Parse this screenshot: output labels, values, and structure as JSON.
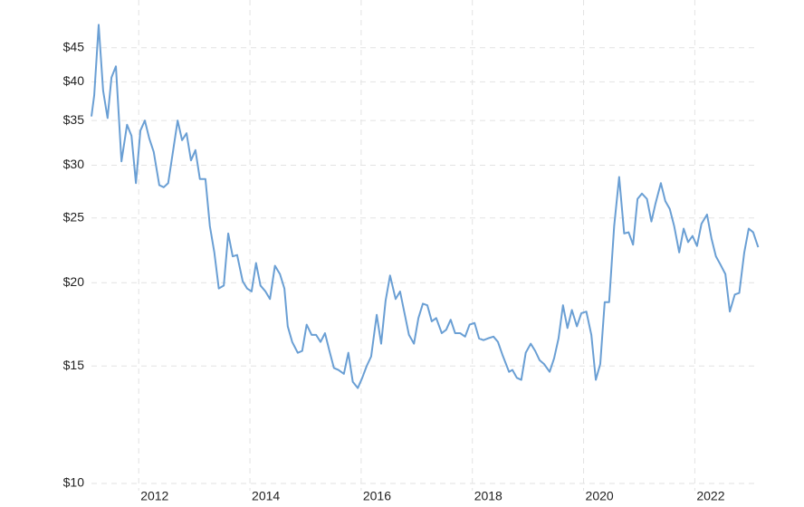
{
  "chart_data": {
    "type": "line",
    "log_scale_y": true,
    "grid": true,
    "xlim": [
      2011.15,
      2023.15
    ],
    "xticks": [
      2012,
      2014,
      2016,
      2018,
      2020,
      2022
    ],
    "ylim": [
      10,
      50
    ],
    "yticks": [
      {
        "value": 10,
        "label": "$10"
      },
      {
        "value": 15,
        "label": "$15"
      },
      {
        "value": 20,
        "label": "$20"
      },
      {
        "value": 25,
        "label": "$25"
      },
      {
        "value": 30,
        "label": "$30"
      },
      {
        "value": 35,
        "label": "$35"
      },
      {
        "value": 40,
        "label": "$40"
      },
      {
        "value": 45,
        "label": "$45"
      }
    ],
    "x": [
      2011.15,
      2011.2,
      2011.28,
      2011.36,
      2011.44,
      2011.51,
      2011.59,
      2011.69,
      2011.79,
      2011.87,
      2011.95,
      2012.03,
      2012.11,
      2012.19,
      2012.27,
      2012.37,
      2012.45,
      2012.53,
      2012.62,
      2012.7,
      2012.78,
      2012.86,
      2012.94,
      2013.02,
      2013.1,
      2013.2,
      2013.28,
      2013.36,
      2013.44,
      2013.53,
      2013.61,
      2013.69,
      2013.77,
      2013.87,
      2013.95,
      2014.03,
      2014.11,
      2014.19,
      2014.28,
      2014.36,
      2014.45,
      2014.54,
      2014.62,
      2014.68,
      2014.76,
      2014.86,
      2014.94,
      2015.02,
      2015.11,
      2015.19,
      2015.27,
      2015.35,
      2015.43,
      2015.51,
      2015.59,
      2015.69,
      2015.77,
      2015.85,
      2015.94,
      2016.02,
      2016.1,
      2016.18,
      2016.28,
      2016.36,
      2016.44,
      2016.52,
      2016.62,
      2016.7,
      2016.78,
      2016.86,
      2016.95,
      2017.03,
      2017.11,
      2017.19,
      2017.27,
      2017.35,
      2017.45,
      2017.53,
      2017.61,
      2017.69,
      2017.78,
      2017.87,
      2017.95,
      2018.04,
      2018.12,
      2018.2,
      2018.28,
      2018.38,
      2018.46,
      2018.54,
      2018.66,
      2018.72,
      2018.8,
      2018.88,
      2018.96,
      2019.05,
      2019.13,
      2019.21,
      2019.29,
      2019.39,
      2019.47,
      2019.55,
      2019.63,
      2019.71,
      2019.79,
      2019.88,
      2019.96,
      2020.05,
      2020.14,
      2020.22,
      2020.3,
      2020.38,
      2020.46,
      2020.55,
      2020.64,
      2020.73,
      2020.81,
      2020.89,
      2020.97,
      2021.05,
      2021.14,
      2021.22,
      2021.29,
      2021.39,
      2021.47,
      2021.55,
      2021.63,
      2021.72,
      2021.8,
      2021.88,
      2021.96,
      2022.04,
      2022.12,
      2022.22,
      2022.3,
      2022.38,
      2022.46,
      2022.55,
      2022.63,
      2022.72,
      2022.8,
      2022.89,
      2022.97,
      2023.05,
      2023.14
    ],
    "series": [
      {
        "color": "#6a9fd4",
        "values": [
          35.5,
          38.2,
          48.7,
          38.8,
          35.3,
          40.6,
          42.2,
          30.4,
          34.5,
          33.2,
          28.2,
          33.8,
          35.0,
          32.9,
          31.4,
          28.0,
          27.8,
          28.2,
          31.6,
          35.0,
          32.7,
          33.5,
          30.5,
          31.6,
          28.6,
          28.6,
          24.3,
          22.2,
          19.6,
          19.8,
          23.7,
          21.9,
          22.0,
          20.1,
          19.6,
          19.4,
          21.4,
          19.8,
          19.4,
          18.9,
          21.2,
          20.6,
          19.6,
          17.2,
          16.3,
          15.7,
          15.8,
          17.3,
          16.7,
          16.7,
          16.3,
          16.8,
          15.8,
          14.9,
          14.8,
          14.6,
          15.7,
          14.2,
          13.9,
          14.4,
          15.0,
          15.5,
          17.9,
          16.2,
          18.8,
          20.5,
          18.9,
          19.4,
          18.0,
          16.7,
          16.2,
          17.7,
          18.6,
          18.5,
          17.5,
          17.7,
          16.8,
          17.0,
          17.6,
          16.8,
          16.8,
          16.6,
          17.3,
          17.4,
          16.5,
          16.4,
          16.5,
          16.6,
          16.3,
          15.6,
          14.7,
          14.8,
          14.4,
          14.3,
          15.7,
          16.2,
          15.8,
          15.3,
          15.1,
          14.7,
          15.4,
          16.5,
          18.5,
          17.1,
          18.2,
          17.2,
          18.0,
          18.1,
          16.7,
          14.3,
          15.1,
          18.7,
          18.7,
          24.3,
          28.8,
          23.7,
          23.8,
          22.8,
          26.7,
          27.2,
          26.7,
          24.7,
          26.2,
          28.2,
          26.5,
          25.8,
          24.3,
          22.2,
          24.1,
          23.0,
          23.5,
          22.7,
          24.5,
          25.3,
          23.3,
          21.9,
          21.3,
          20.6,
          18.1,
          19.2,
          19.3,
          22.2,
          24.1,
          23.8,
          22.6
        ]
      }
    ]
  }
}
